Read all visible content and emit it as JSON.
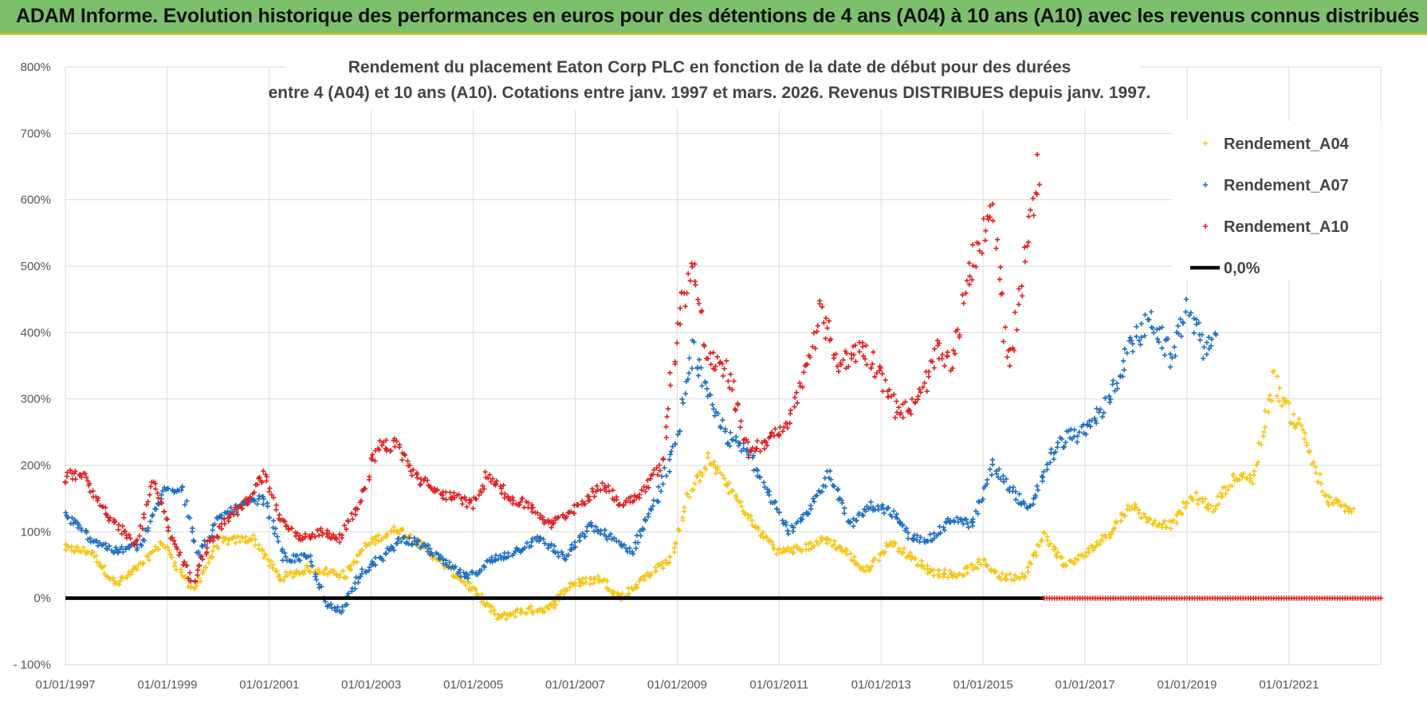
{
  "header": {
    "title": "ADAM Informe. Evolution historique des performances en euros pour des détentions de 4 ans (A04) à 10 ans (A10) avec les revenus connus distribués"
  },
  "colors": {
    "A04": "#f5c518",
    "A07": "#1f6fc0",
    "A10": "#e02020",
    "zero": "#000000",
    "banner": "#7dc06c"
  },
  "chart_data": {
    "type": "scatter",
    "title_line1": "Rendement du placement Eaton Corp PLC en fonction de la date de début pour des durées",
    "title_line2": "entre 4 (A04) et 10 ans (A10).  Cotations entre janv. 1997 et mars. 2026.  Revenus DISTRIBUES depuis janv. 1997.",
    "xlabel": "",
    "ylabel": "",
    "xlim": [
      1997.0,
      2022.8
    ],
    "ylim": [
      -100,
      800
    ],
    "grid": true,
    "legend_position": "top-right",
    "y_ticks": [
      "800%",
      "700%",
      "600%",
      "500%",
      "400%",
      "300%",
      "200%",
      "100%",
      "0%",
      "- 100%"
    ],
    "x_ticks": [
      "01/01/1997",
      "01/01/1999",
      "01/01/2001",
      "01/01/2003",
      "01/01/2005",
      "01/01/2007",
      "01/01/2009",
      "01/01/2011",
      "01/01/2013",
      "01/01/2015",
      "01/01/2017",
      "01/01/2019",
      "01/01/2021"
    ],
    "series": [
      {
        "name": "Rendement_A04",
        "key": "A04",
        "x": [
          1997.0,
          1997.5,
          1998.0,
          1998.5,
          1998.9,
          1999.5,
          2000.0,
          2000.7,
          2001.2,
          2001.8,
          2002.5,
          2002.9,
          2003.5,
          2003.9,
          2004.5,
          2004.9,
          2005.5,
          2005.9,
          2006.5,
          2006.9,
          2007.5,
          2007.9,
          2008.5,
          2008.9,
          2009.2,
          2009.6,
          2010.0,
          2010.5,
          2011.0,
          2011.5,
          2011.9,
          2012.3,
          2012.7,
          2013.2,
          2013.6,
          2014.0,
          2014.5,
          2015.0,
          2015.4,
          2015.8,
          2016.2,
          2016.6,
          2017.0,
          2017.5,
          2017.9,
          2018.3,
          2018.7,
          2019.1,
          2019.5,
          2019.9,
          2020.3,
          2020.7,
          2021.0,
          2021.3,
          2021.7,
          2022.0,
          2022.3
        ],
        "y": [
          75,
          70,
          20,
          50,
          85,
          10,
          85,
          90,
          30,
          45,
          35,
          80,
          105,
          85,
          45,
          20,
          -30,
          -20,
          -15,
          20,
          30,
          0,
          40,
          60,
          150,
          210,
          170,
          110,
          70,
          75,
          90,
          70,
          40,
          85,
          60,
          40,
          35,
          55,
          30,
          35,
          95,
          50,
          65,
          100,
          140,
          115,
          110,
          155,
          135,
          180,
          180,
          330,
          280,
          250,
          150,
          140,
          130
        ]
      },
      {
        "name": "Rendement_A07",
        "key": "A07",
        "x": [
          1997.0,
          1997.5,
          1998.0,
          1998.5,
          1998.9,
          1999.3,
          1999.6,
          2000.0,
          2000.5,
          2000.9,
          2001.3,
          2001.8,
          2002.1,
          2002.4,
          2002.8,
          2003.2,
          2003.6,
          2004.0,
          2004.5,
          2004.9,
          2005.3,
          2005.8,
          2006.3,
          2006.8,
          2007.3,
          2007.7,
          2008.1,
          2008.6,
          2009.0,
          2009.3,
          2009.6,
          2010.0,
          2010.4,
          2010.8,
          2011.2,
          2011.6,
          2012.0,
          2012.4,
          2012.8,
          2013.2,
          2013.6,
          2014.0,
          2014.4,
          2014.8,
          2015.2,
          2015.6,
          2015.9,
          2016.3,
          2016.6,
          2017.0,
          2017.4,
          2017.9,
          2018.3,
          2018.7,
          2019.0,
          2019.3,
          2019.6
        ],
        "y": [
          125,
          90,
          70,
          80,
          160,
          170,
          60,
          120,
          140,
          150,
          60,
          60,
          -10,
          -20,
          40,
          60,
          90,
          80,
          50,
          30,
          55,
          70,
          90,
          60,
          110,
          90,
          70,
          150,
          240,
          380,
          300,
          240,
          220,
          160,
          100,
          130,
          190,
          110,
          140,
          130,
          90,
          90,
          120,
          110,
          200,
          160,
          130,
          210,
          240,
          250,
          290,
          380,
          420,
          360,
          440,
          380,
          380
        ]
      },
      {
        "name": "Rendement_A10",
        "key": "A10",
        "x": [
          1997.0,
          1997.3,
          1997.7,
          1998.0,
          1998.4,
          1998.7,
          1999.1,
          1999.5,
          1999.8,
          2000.2,
          2000.6,
          2000.9,
          2001.2,
          2001.6,
          2002.0,
          2002.4,
          2002.8,
          2003.1,
          2003.5,
          2003.9,
          2004.3,
          2004.7,
          2005.0,
          2005.3,
          2005.7,
          2006.1,
          2006.5,
          2006.9,
          2007.2,
          2007.6,
          2007.9,
          2008.3,
          2008.7,
          2009.0,
          2009.3,
          2009.6,
          2010.0,
          2010.4,
          2010.8,
          2011.1,
          2011.4,
          2011.8,
          2012.2,
          2012.6,
          2013.0,
          2013.3,
          2013.7,
          2014.1,
          2014.4,
          2014.7,
          2015.0,
          2015.2,
          2015.5,
          2015.8,
          2016.1
        ],
        "y": [
          180,
          190,
          140,
          110,
          80,
          180,
          90,
          20,
          80,
          120,
          150,
          190,
          120,
          90,
          100,
          90,
          150,
          230,
          230,
          180,
          160,
          150,
          140,
          190,
          150,
          140,
          110,
          130,
          150,
          170,
          140,
          160,
          200,
          410,
          510,
          360,
          340,
          220,
          240,
          250,
          310,
          430,
          350,
          380,
          340,
          280,
          290,
          370,
          350,
          480,
          550,
          600,
          340,
          500,
          650
        ]
      },
      {
        "name": "0,0%",
        "key": "zero",
        "x": [
          1997.0,
          2016.2
        ],
        "y": [
          0,
          0
        ]
      }
    ],
    "flat_segment_A10": {
      "x": [
        2016.2,
        2022.8
      ],
      "y": 0
    }
  }
}
